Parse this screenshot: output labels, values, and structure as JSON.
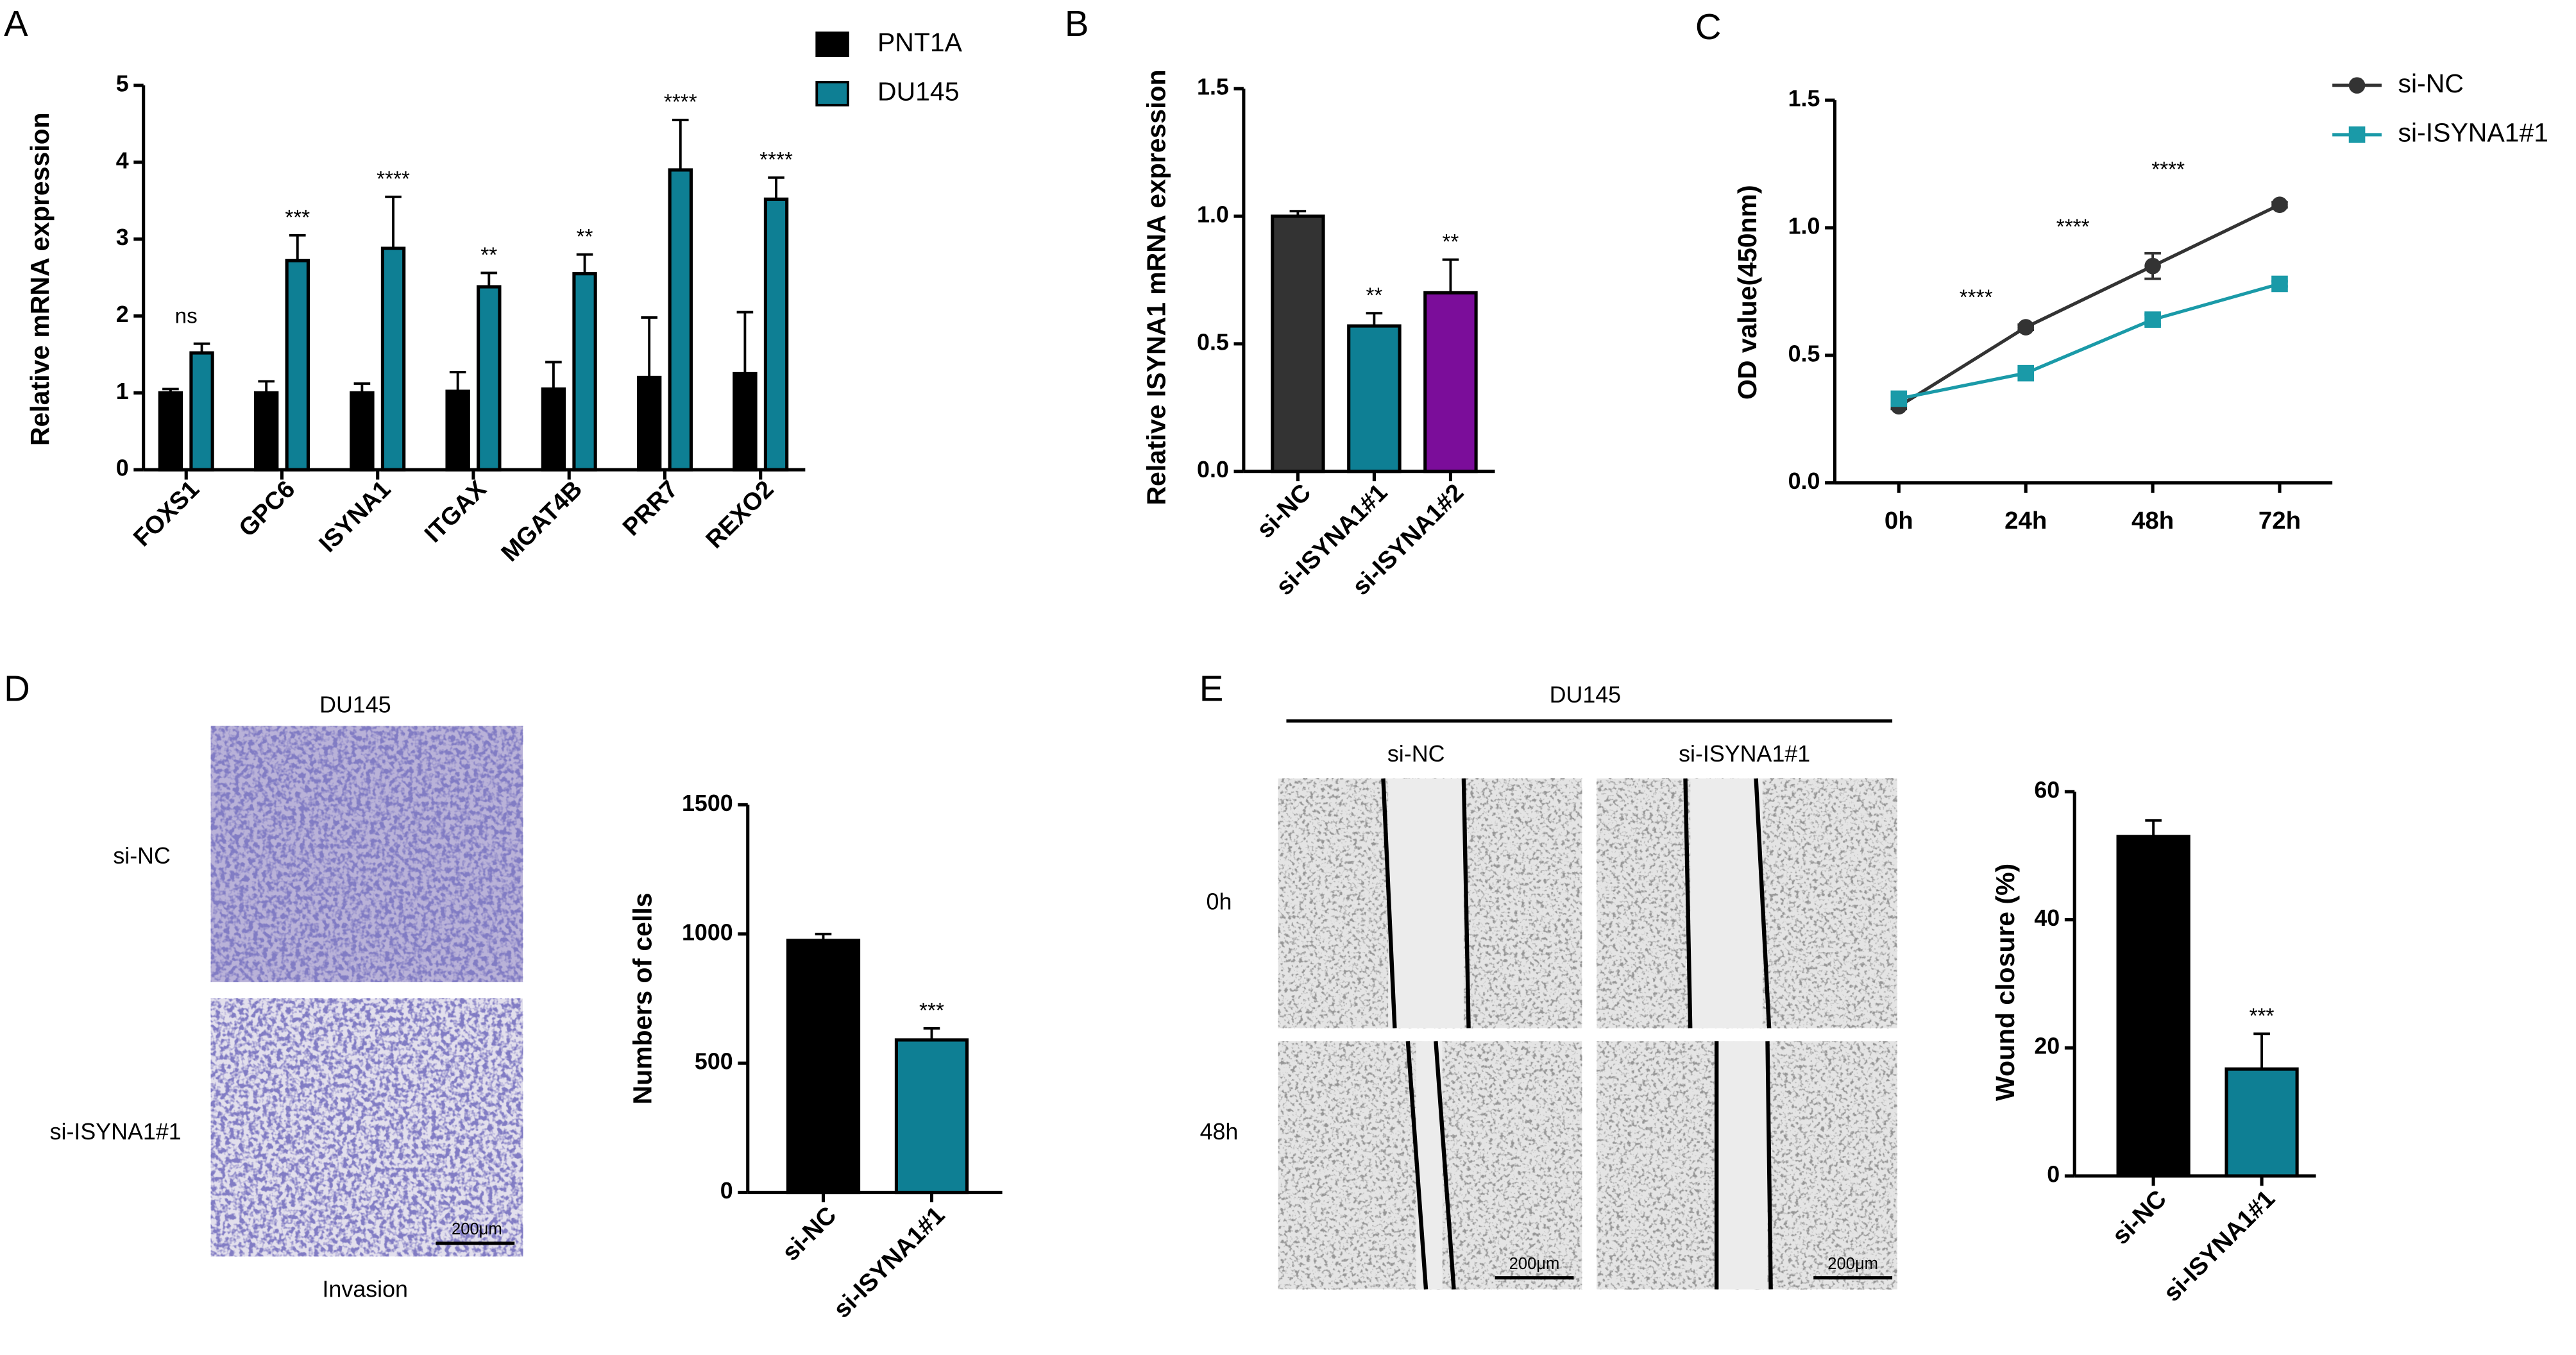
{
  "chart_data": [
    {
      "type": "bar",
      "panel": "A",
      "ylabel": "Relative mRNA expression",
      "categories": [
        "FOXS1",
        "GPC6",
        "ISYNA1",
        "ITGAX",
        "MGAT4B",
        "PRR7",
        "REXO2"
      ],
      "series": [
        {
          "name": "PNT1A",
          "color": "#000000",
          "values": [
            1.0,
            1.0,
            1.0,
            1.02,
            1.05,
            1.2,
            1.25
          ],
          "errors": [
            0.05,
            0.15,
            0.12,
            0.25,
            0.35,
            0.78,
            0.8
          ]
        },
        {
          "name": "DU145",
          "color": "#0e7f94",
          "values": [
            1.52,
            2.72,
            2.88,
            2.38,
            2.55,
            3.9,
            3.52
          ],
          "errors": [
            0.12,
            0.33,
            0.67,
            0.18,
            0.25,
            0.65,
            0.28
          ]
        }
      ],
      "significance": [
        "ns",
        "***",
        "****",
        "**",
        "**",
        "****",
        "****"
      ],
      "ylim": [
        0,
        5
      ],
      "yticks": [
        0,
        1,
        2,
        3,
        4,
        5
      ],
      "legend": "top-right"
    },
    {
      "type": "bar",
      "panel": "B",
      "ylabel": "Relative ISYNA1 mRNA expression",
      "categories": [
        "si-NC",
        "si-ISYNA1#1",
        "si-ISYNA1#2"
      ],
      "values": [
        1.0,
        0.57,
        0.7
      ],
      "errors": [
        0.02,
        0.05,
        0.13
      ],
      "colors": [
        "#333333",
        "#0e7f94",
        "#7b0d9a"
      ],
      "significance": [
        null,
        "**",
        "**"
      ],
      "ylim": [
        0,
        1.5
      ],
      "yticks": [
        {
          "value": 0,
          "label": "0.0"
        },
        0.5,
        {
          "value": 1,
          "label": "1.0"
        },
        1.5
      ]
    },
    {
      "type": "line",
      "panel": "C",
      "ylabel": "OD value(450nm)",
      "categories": [
        "0h",
        "24h",
        "48h",
        "72h"
      ],
      "series": [
        {
          "name": "si-NC",
          "color": "#333333",
          "marker": "circle",
          "values": [
            0.3,
            0.61,
            0.85,
            1.09
          ],
          "errors": [
            0.01,
            0.01,
            0.05,
            0.01
          ]
        },
        {
          "name": "si-ISYNA1#1",
          "color": "#1a9aa8",
          "marker": "square",
          "values": [
            0.33,
            0.43,
            0.64,
            0.78
          ],
          "errors": [
            0.01,
            0.01,
            0.02,
            0.01
          ]
        }
      ],
      "annotations": [
        "****",
        "****",
        "****"
      ],
      "ylim": [
        0,
        1.5
      ],
      "yticks": [
        {
          "value": 0,
          "label": "0.0"
        },
        0.5,
        {
          "value": 1,
          "label": "1.0"
        },
        1.5
      ],
      "legend": "top-right"
    },
    {
      "type": "bar",
      "panel": "D",
      "ylabel": "Numbers of cells",
      "categories": [
        "si-NC",
        "si-ISYNA1#1"
      ],
      "values": [
        975,
        590
      ],
      "errors": [
        25,
        45
      ],
      "colors": [
        "#000000",
        "#0e7f94"
      ],
      "significance": [
        null,
        "***"
      ],
      "ylim": [
        0,
        1500
      ],
      "yticks": [
        0,
        500,
        1000,
        1500
      ],
      "images": {
        "title": "DU145",
        "rows": [
          "si-NC",
          "si-ISYNA1#1"
        ],
        "caption": "Invasion",
        "scale_bar": "200μm"
      }
    },
    {
      "type": "bar",
      "panel": "E",
      "ylabel": "Wound closure (%)",
      "categories": [
        "si-NC",
        "si-ISYNA1#1"
      ],
      "values": [
        53,
        16.7
      ],
      "errors": [
        2.5,
        5.5
      ],
      "colors": [
        "#000000",
        "#0e7f94"
      ],
      "significance": [
        null,
        "***"
      ],
      "ylim": [
        0,
        60
      ],
      "yticks": [
        0,
        20,
        40,
        60
      ],
      "images": {
        "title": "DU145",
        "columns": [
          "si-NC",
          "si-ISYNA1#1"
        ],
        "rows": [
          "0h",
          "48h"
        ],
        "scale_bars": [
          "200μm",
          "200μm"
        ]
      }
    }
  ]
}
